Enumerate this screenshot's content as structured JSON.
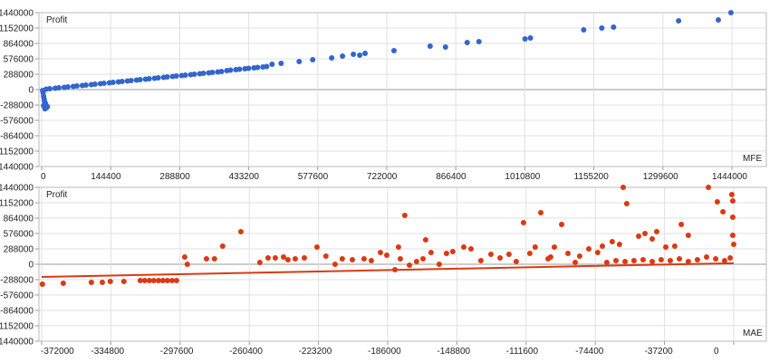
{
  "chart_data": [
    {
      "type": "scatter",
      "ylabel": "Profit",
      "xlabel": "MFE",
      "xlim": [
        0,
        1444000
      ],
      "ylim": [
        -1440000,
        1440000
      ],
      "x_ticks": [
        "0",
        "144400",
        "288800",
        "433200",
        "577600",
        "722000",
        "866400",
        "1010800",
        "1155200",
        "1299600",
        "1444000"
      ],
      "y_ticks": [
        "1440000",
        "1152000",
        "864000",
        "576000",
        "288000",
        "0",
        "-288000",
        "-576000",
        "-864000",
        "-1152000",
        "-1440000"
      ],
      "grid": true,
      "color": "#3366cc",
      "points": [
        [
          1442000,
          1440000
        ],
        [
          1415600,
          1304500
        ],
        [
          1332500,
          1287500
        ],
        [
          1196400,
          1169000
        ],
        [
          1171800,
          1152000
        ],
        [
          1134000,
          1118100
        ],
        [
          1022500,
          965600
        ],
        [
          1011200,
          948700
        ],
        [
          914800,
          897900
        ],
        [
          890200,
          880900
        ],
        [
          844800,
          796200
        ],
        [
          812700,
          813200
        ],
        [
          737100,
          728500
        ],
        [
          676600,
          677600
        ],
        [
          665300,
          643800
        ],
        [
          652100,
          660700
        ],
        [
          629400,
          626800
        ],
        [
          606700,
          592900
        ],
        [
          567000,
          559100
        ],
        [
          538700,
          525200
        ],
        [
          500900,
          491300
        ],
        [
          482000,
          474300
        ],
        [
          9450,
          8500
        ],
        [
          28350,
          25400
        ],
        [
          47250,
          42400
        ],
        [
          66150,
          59300
        ],
        [
          85050,
          76200
        ],
        [
          103950,
          93200
        ],
        [
          122850,
          110100
        ],
        [
          141750,
          127100
        ],
        [
          160650,
          144000
        ],
        [
          179550,
          160900
        ],
        [
          198450,
          177900
        ],
        [
          217350,
          194800
        ],
        [
          236250,
          211800
        ],
        [
          255150,
          228700
        ],
        [
          274050,
          245600
        ],
        [
          292950,
          262600
        ],
        [
          311850,
          279500
        ],
        [
          330750,
          296500
        ],
        [
          349650,
          313400
        ],
        [
          368550,
          330300
        ],
        [
          387450,
          355800
        ],
        [
          406350,
          372700
        ],
        [
          425250,
          389700
        ],
        [
          444150,
          406600
        ],
        [
          463050,
          423500
        ],
        [
          2000,
          -17000
        ],
        [
          3000,
          -60000
        ],
        [
          4000,
          -120000
        ],
        [
          5000,
          -170000
        ],
        [
          6000,
          -220000
        ],
        [
          8000,
          -260000
        ],
        [
          4000,
          -300000
        ],
        [
          10000,
          -340000
        ],
        [
          7000,
          -360000
        ],
        [
          12000,
          -320000
        ]
      ]
    },
    {
      "type": "scatter",
      "ylabel": "Profit",
      "xlabel": "MAE",
      "xlim": [
        -372000,
        0
      ],
      "ylim": [
        -1440000,
        1440000
      ],
      "x_ticks": [
        "-372000",
        "-334800",
        "-297600",
        "-260400",
        "-223200",
        "-186000",
        "-148800",
        "-111600",
        "-74400",
        "-37200",
        "0"
      ],
      "y_ticks": [
        "1440000",
        "1152000",
        "864000",
        "576000",
        "288000",
        "0",
        "-288000",
        "-576000",
        "-864000",
        "-1152000",
        "-1440000"
      ],
      "grid": true,
      "color": "#dc3912",
      "trendline": [
        [
          -372000,
          -237000
        ],
        [
          0,
          20000
        ]
      ],
      "points": [
        [
          -371600,
          -373000
        ],
        [
          -360400,
          -356000
        ],
        [
          -345300,
          -339000
        ],
        [
          -339400,
          -339000
        ],
        [
          -335100,
          -322000
        ],
        [
          -327800,
          -322000
        ],
        [
          -319000,
          -305000
        ],
        [
          -316600,
          -305000
        ],
        [
          -314100,
          -305000
        ],
        [
          -311700,
          -305000
        ],
        [
          -309200,
          -305000
        ],
        [
          -306800,
          -305000
        ],
        [
          -304400,
          -305000
        ],
        [
          -301900,
          -305000
        ],
        [
          -299500,
          -305000
        ],
        [
          -295100,
          136000
        ],
        [
          -293700,
          0
        ],
        [
          -283400,
          102000
        ],
        [
          -279100,
          102000
        ],
        [
          -274700,
          339000
        ],
        [
          -264900,
          610000
        ],
        [
          -254700,
          34000
        ],
        [
          -250300,
          119000
        ],
        [
          -246400,
          119000
        ],
        [
          -242000,
          136000
        ],
        [
          -239600,
          85000
        ],
        [
          -235700,
          102000
        ],
        [
          -230800,
          119000
        ],
        [
          -224000,
          322000
        ],
        [
          -219200,
          152000
        ],
        [
          -214300,
          0
        ],
        [
          -210400,
          102000
        ],
        [
          -205000,
          85000
        ],
        [
          -198700,
          102000
        ],
        [
          -194800,
          68000
        ],
        [
          -189900,
          220000
        ],
        [
          -186500,
          169000
        ],
        [
          -182100,
          -102000
        ],
        [
          -180200,
          322000
        ],
        [
          -179200,
          102000
        ],
        [
          -176800,
          915000
        ],
        [
          -174300,
          -17000
        ],
        [
          -170500,
          51000
        ],
        [
          -167000,
          102000
        ],
        [
          -165600,
          457000
        ],
        [
          -162700,
          220000
        ],
        [
          -158300,
          0
        ],
        [
          -154400,
          203000
        ],
        [
          -151000,
          237000
        ],
        [
          -145100,
          322000
        ],
        [
          -141200,
          288000
        ],
        [
          -135900,
          68000
        ],
        [
          -130500,
          186000
        ],
        [
          -125600,
          119000
        ],
        [
          -120800,
          186000
        ],
        [
          -116900,
          51000
        ],
        [
          -113000,
          779000
        ],
        [
          -109600,
          203000
        ],
        [
          -106700,
          322000
        ],
        [
          -103700,
          966000
        ],
        [
          -99800,
          102000
        ],
        [
          -98400,
          136000
        ],
        [
          -96400,
          322000
        ],
        [
          -92500,
          745000
        ],
        [
          -89100,
          203000
        ],
        [
          -85200,
          34000
        ],
        [
          -82800,
          152000
        ],
        [
          -77900,
          288000
        ],
        [
          -73100,
          220000
        ],
        [
          -70600,
          339000
        ],
        [
          -65300,
          424000
        ],
        [
          -61400,
          373000
        ],
        [
          -59400,
          1440000
        ],
        [
          -57500,
          1135000
        ],
        [
          -51100,
          525000
        ],
        [
          -47700,
          576000
        ],
        [
          -43800,
          474000
        ],
        [
          -41400,
          610000
        ],
        [
          -36500,
          322000
        ],
        [
          -31700,
          339000
        ],
        [
          -28200,
          745000
        ],
        [
          -24400,
          542000
        ],
        [
          -13600,
          1440000
        ],
        [
          -8800,
          1169000
        ],
        [
          -5800,
          983000
        ],
        [
          -1000,
          1304000
        ],
        [
          -500,
          1186000
        ],
        [
          -500,
          881000
        ],
        [
          -500,
          542000
        ],
        [
          0,
          373000
        ],
        [
          -1900,
          119000
        ],
        [
          -4900,
          68000
        ],
        [
          -9700,
          102000
        ],
        [
          -14600,
          136000
        ],
        [
          -19500,
          85000
        ],
        [
          -24400,
          51000
        ],
        [
          -29200,
          102000
        ],
        [
          -34100,
          68000
        ],
        [
          -39000,
          85000
        ],
        [
          -43800,
          51000
        ],
        [
          -48700,
          85000
        ],
        [
          -53600,
          68000
        ],
        [
          -58400,
          51000
        ],
        [
          -63300,
          68000
        ],
        [
          -68200,
          34000
        ]
      ]
    }
  ]
}
